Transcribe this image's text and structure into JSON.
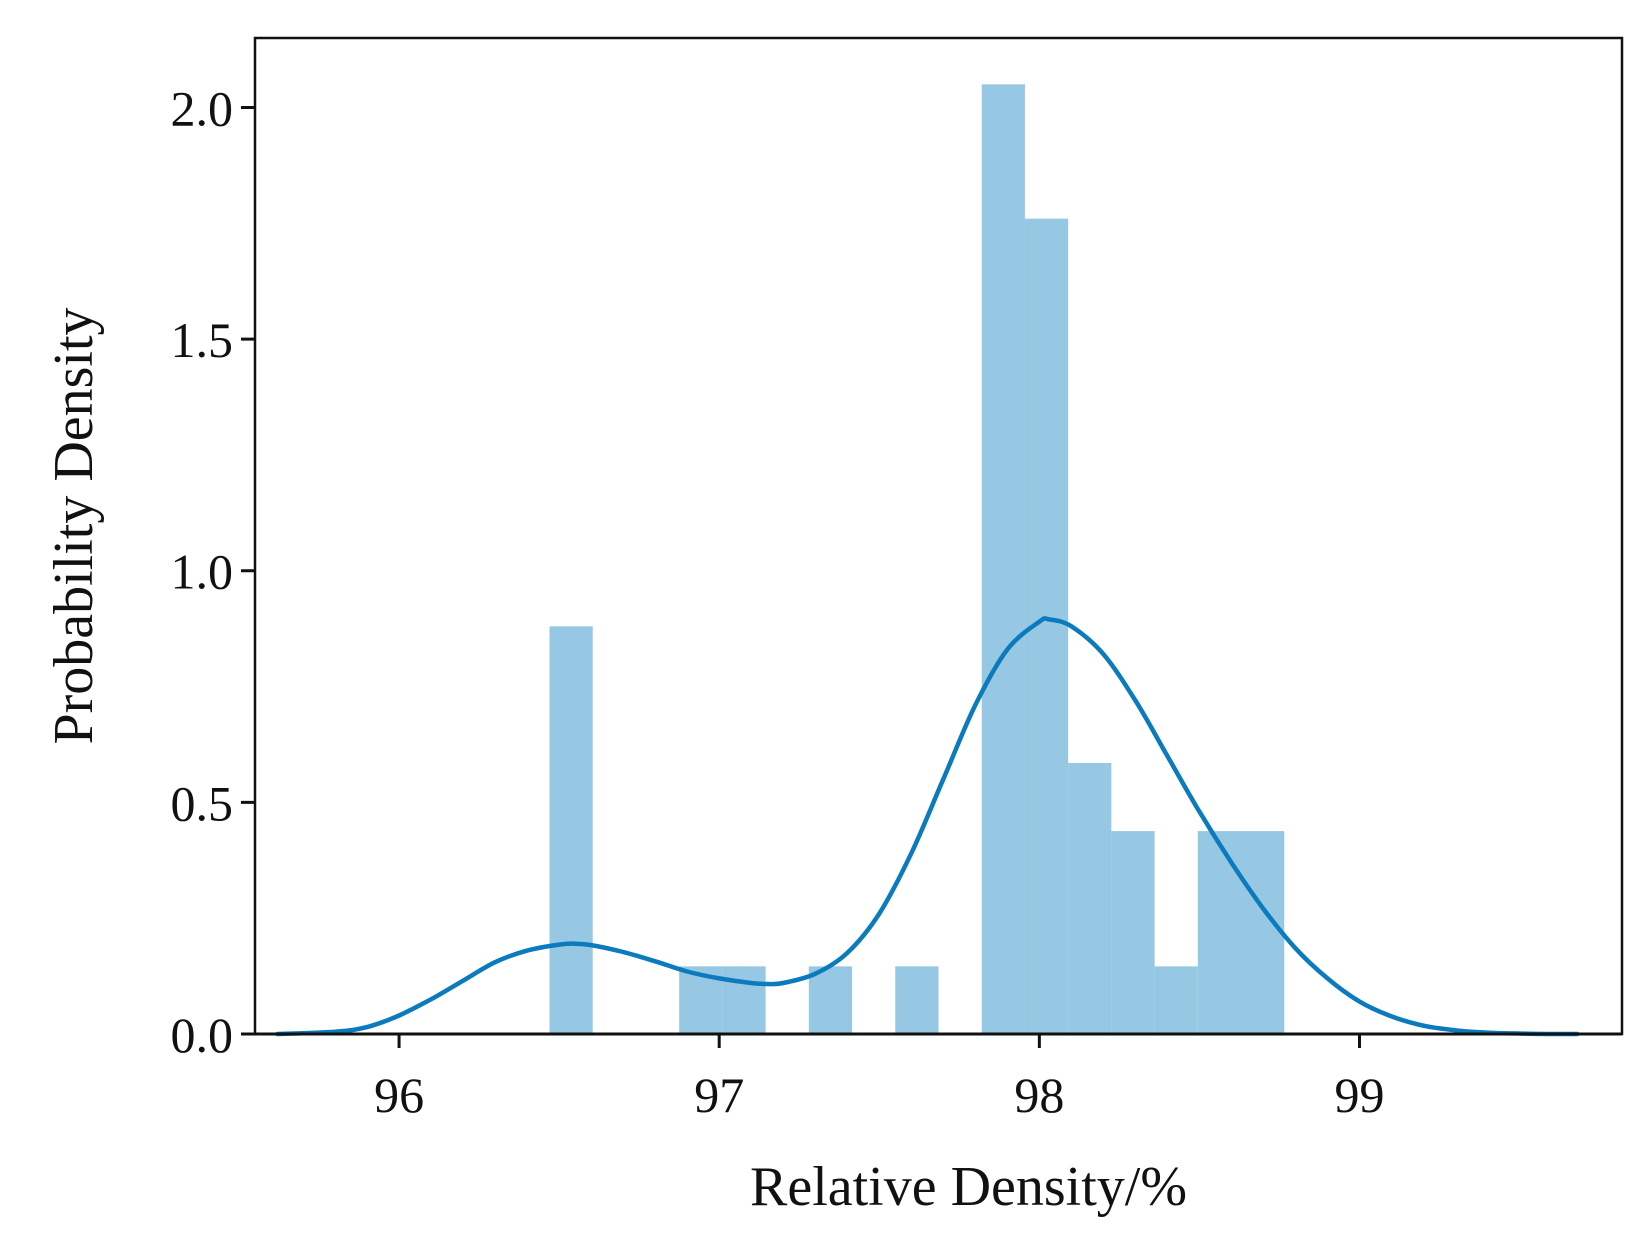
{
  "chart_data": {
    "type": "bar",
    "subtype": "histogram-with-kde",
    "title": "",
    "xlabel": "Relative Density/%",
    "ylabel": "Probability Density",
    "xlim": [
      95.55,
      99.82
    ],
    "ylim": [
      0.0,
      2.15
    ],
    "xticks": [
      96,
      97,
      98,
      99
    ],
    "xtick_labels": [
      "96",
      "97",
      "98",
      "99"
    ],
    "yticks": [
      0.0,
      0.5,
      1.0,
      1.5,
      2.0
    ],
    "ytick_labels": [
      "0.0",
      "0.5",
      "1.0",
      "1.5",
      "2.0"
    ],
    "grid": false,
    "legend": "none",
    "bin_width": 0.135,
    "bins": [
      {
        "left": 96.47,
        "value": 0.88
      },
      {
        "left": 96.605,
        "value": 0.0
      },
      {
        "left": 96.74,
        "value": 0.0
      },
      {
        "left": 96.875,
        "value": 0.146
      },
      {
        "left": 97.01,
        "value": 0.146
      },
      {
        "left": 97.145,
        "value": 0.0
      },
      {
        "left": 97.28,
        "value": 0.146
      },
      {
        "left": 97.415,
        "value": 0.0
      },
      {
        "left": 97.55,
        "value": 0.146
      },
      {
        "left": 97.685,
        "value": 0.0
      },
      {
        "left": 97.82,
        "value": 2.05
      },
      {
        "left": 97.955,
        "value": 1.76
      },
      {
        "left": 98.09,
        "value": 0.585
      },
      {
        "left": 98.225,
        "value": 0.438
      },
      {
        "left": 98.36,
        "value": 0.146
      },
      {
        "left": 98.495,
        "value": 0.438
      },
      {
        "left": 98.63,
        "value": 0.438
      }
    ],
    "kde": {
      "x": [
        95.62,
        95.8,
        95.9,
        96.0,
        96.1,
        96.2,
        96.3,
        96.4,
        96.5,
        96.55,
        96.6,
        96.7,
        96.8,
        96.9,
        97.0,
        97.1,
        97.15,
        97.2,
        97.3,
        97.4,
        97.5,
        97.6,
        97.7,
        97.8,
        97.9,
        98.0,
        98.03,
        98.1,
        98.2,
        98.3,
        98.4,
        98.5,
        98.6,
        98.7,
        98.8,
        98.9,
        99.0,
        99.1,
        99.2,
        99.3,
        99.4,
        99.5,
        99.6,
        99.68
      ],
      "y": [
        0.0,
        0.005,
        0.015,
        0.04,
        0.075,
        0.115,
        0.155,
        0.18,
        0.193,
        0.195,
        0.192,
        0.177,
        0.157,
        0.135,
        0.12,
        0.11,
        0.108,
        0.11,
        0.13,
        0.175,
        0.26,
        0.39,
        0.55,
        0.71,
        0.83,
        0.89,
        0.895,
        0.88,
        0.82,
        0.72,
        0.6,
        0.48,
        0.37,
        0.27,
        0.185,
        0.12,
        0.07,
        0.038,
        0.018,
        0.008,
        0.003,
        0.001,
        0.0,
        0.0
      ]
    },
    "colors": {
      "bars": "#96c8e3",
      "kde": "#0b7bbd",
      "axis": "#111111"
    }
  }
}
